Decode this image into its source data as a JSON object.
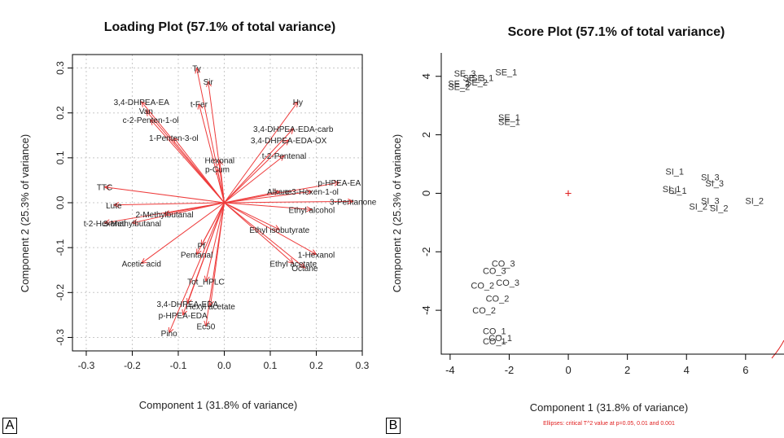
{
  "panels": {
    "a": "A",
    "b": "B"
  },
  "chart_data": [
    {
      "type": "scatter",
      "subtype": "biplot-loadings",
      "title": "Loading Plot (57.1% of total variance)",
      "xlabel": "Component 1 (31.8% of variance)",
      "ylabel": "Component 2 (25.3% of variance)",
      "xlim": [
        -0.33,
        0.3
      ],
      "ylim": [
        -0.33,
        0.33
      ],
      "xticks": [
        -0.3,
        -0.2,
        -0.1,
        0.0,
        0.1,
        0.2,
        0.3
      ],
      "yticks": [
        -0.3,
        -0.2,
        -0.1,
        0.0,
        0.1,
        0.2,
        0.3
      ],
      "xtick_labels": [
        "-0.3",
        "-0.2",
        "-0.1",
        "0.0",
        "0.1",
        "0.2",
        "0.3"
      ],
      "ytick_labels": [
        "-0.3",
        "-0.2",
        "-0.1",
        "0.0",
        "0.1",
        "0.2",
        "0.3"
      ],
      "grid": true,
      "arrow_color": "#ee3b3b",
      "variables": [
        {
          "name": "Ty",
          "x": -0.06,
          "y": 0.3
        },
        {
          "name": "Sir",
          "x": -0.035,
          "y": 0.27
        },
        {
          "name": "3,4-DHPEA-EA",
          "x": -0.18,
          "y": 0.225
        },
        {
          "name": "t-Fer",
          "x": -0.055,
          "y": 0.22
        },
        {
          "name": "Van",
          "x": -0.17,
          "y": 0.205
        },
        {
          "name": "c-2-Penten-1-ol",
          "x": -0.16,
          "y": 0.185
        },
        {
          "name": "1-Penten-3-ol",
          "x": -0.11,
          "y": 0.145
        },
        {
          "name": "Hy",
          "x": 0.16,
          "y": 0.225
        },
        {
          "name": "3,4-DHPEA-EDA-carb",
          "x": 0.15,
          "y": 0.165
        },
        {
          "name": "3,4-DHPEA-EDA-OX",
          "x": 0.14,
          "y": 0.14
        },
        {
          "name": "t-2-Pentenal",
          "x": 0.13,
          "y": 0.105
        },
        {
          "name": "Hexonal",
          "x": -0.01,
          "y": 0.095
        },
        {
          "name": "p-Cum",
          "x": -0.015,
          "y": 0.075
        },
        {
          "name": "p-HPEA-EA",
          "x": 0.25,
          "y": 0.045
        },
        {
          "name": "Alkane",
          "x": 0.12,
          "y": 0.025
        },
        {
          "name": "c-3-Hexen-1-ol",
          "x": 0.19,
          "y": 0.025
        },
        {
          "name": "3-Pentanone",
          "x": 0.28,
          "y": 0.003
        },
        {
          "name": "Ethyl alcohol",
          "x": 0.19,
          "y": -0.015
        },
        {
          "name": "TTC",
          "x": -0.26,
          "y": 0.035
        },
        {
          "name": "Lute",
          "x": -0.24,
          "y": -0.005
        },
        {
          "name": "2-Methylbutanal",
          "x": -0.13,
          "y": -0.025
        },
        {
          "name": "3-Methylbutanal",
          "x": -0.2,
          "y": -0.045
        },
        {
          "name": "t-2-Hexenal",
          "x": -0.26,
          "y": -0.045
        },
        {
          "name": "Ethyl isobutyrate",
          "x": 0.12,
          "y": -0.06
        },
        {
          "name": "1-Hexanol",
          "x": 0.2,
          "y": -0.115
        },
        {
          "name": "Ethyl acetate",
          "x": 0.15,
          "y": -0.135
        },
        {
          "name": "Octane",
          "x": 0.175,
          "y": -0.145
        },
        {
          "name": "Pf",
          "x": -0.05,
          "y": -0.095
        },
        {
          "name": "Pentanal",
          "x": -0.06,
          "y": -0.115
        },
        {
          "name": "Acetic acid",
          "x": -0.18,
          "y": -0.135
        },
        {
          "name": "Tot_HPLC",
          "x": -0.04,
          "y": -0.175
        },
        {
          "name": "3,4-DHPEA-EDA",
          "x": -0.08,
          "y": -0.225
        },
        {
          "name": "Hexyl acetate",
          "x": -0.03,
          "y": -0.23
        },
        {
          "name": "p-HPEA-EDA",
          "x": -0.09,
          "y": -0.25
        },
        {
          "name": "Ec50",
          "x": -0.04,
          "y": -0.275
        },
        {
          "name": "Pino",
          "x": -0.12,
          "y": -0.29
        }
      ]
    },
    {
      "type": "scatter",
      "subtype": "scores",
      "title": "Score Plot (57.1% of total variance)",
      "xlabel": "Component 1 (31.8% of variance)",
      "ylabel": "Component 2 (25.3% of variance)",
      "footnote": "Ellipses: critical T^2 value at p=0.05, 0.01 and 0.001",
      "footnote_color": "#e02020",
      "xlim": [
        -4.3,
        7.3
      ],
      "ylim": [
        -5.5,
        4.8
      ],
      "xticks": [
        -4,
        -2,
        0,
        2,
        4,
        6
      ],
      "yticks": [
        -4,
        -2,
        0,
        2,
        4
      ],
      "xtick_labels": [
        "-4",
        "-2",
        "0",
        "2",
        "4",
        "6"
      ],
      "ytick_labels": [
        "-4",
        "-2",
        "0",
        "2",
        "4"
      ],
      "grid": false,
      "origin_marker": "+",
      "origin_color": "#e02020",
      "ellipse_color": "#e02020",
      "points": [
        {
          "label": "SE_3",
          "x": -3.5,
          "y": 4.1
        },
        {
          "label": "SE_1",
          "x": -2.1,
          "y": 4.15
        },
        {
          "label": "SE_3",
          "x": -3.2,
          "y": 3.95
        },
        {
          "label": "SE_1",
          "x": -2.9,
          "y": 3.95
        },
        {
          "label": "SE_2",
          "x": -3.7,
          "y": 3.75
        },
        {
          "label": "SE_2",
          "x": -3.1,
          "y": 3.8
        },
        {
          "label": "SE_2",
          "x": -3.7,
          "y": 3.65
        },
        {
          "label": "SE_1",
          "x": -2.0,
          "y": 2.6
        },
        {
          "label": "SE_1",
          "x": -2.0,
          "y": 2.45
        },
        {
          "label": "SI_1",
          "x": 3.6,
          "y": 0.75
        },
        {
          "label": "SI_3",
          "x": 4.8,
          "y": 0.55
        },
        {
          "label": "SI_3",
          "x": 4.95,
          "y": 0.35
        },
        {
          "label": "SI_1",
          "x": 3.5,
          "y": 0.15
        },
        {
          "label": "SI_1",
          "x": 3.7,
          "y": 0.1
        },
        {
          "label": "SI_3",
          "x": 4.8,
          "y": -0.25
        },
        {
          "label": "SI_2",
          "x": 4.4,
          "y": -0.45
        },
        {
          "label": "SI_2",
          "x": 5.1,
          "y": -0.5
        },
        {
          "label": "SI_2",
          "x": 6.3,
          "y": -0.25
        },
        {
          "label": "CO_3",
          "x": -2.2,
          "y": -2.4
        },
        {
          "label": "CO_3",
          "x": -2.5,
          "y": -2.65
        },
        {
          "label": "CO_3",
          "x": -2.05,
          "y": -3.05
        },
        {
          "label": "CO_2",
          "x": -2.9,
          "y": -3.15
        },
        {
          "label": "CO_2",
          "x": -2.4,
          "y": -3.6
        },
        {
          "label": "CO_2",
          "x": -2.85,
          "y": -4.0
        },
        {
          "label": "CO_1",
          "x": -2.5,
          "y": -4.7
        },
        {
          "label": "CO_1",
          "x": -2.3,
          "y": -4.95
        },
        {
          "label": "CO_1",
          "x": -2.5,
          "y": -5.05
        }
      ]
    }
  ]
}
